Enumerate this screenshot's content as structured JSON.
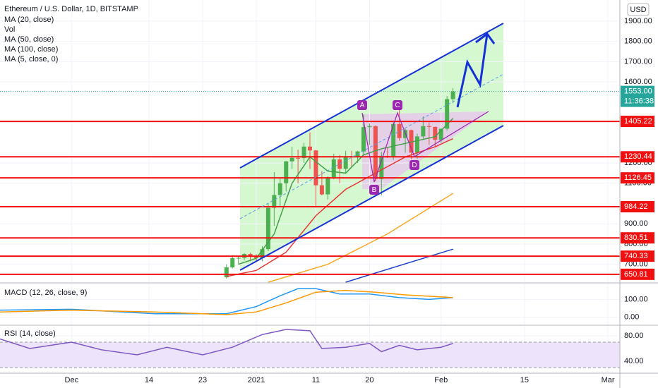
{
  "chart_data": [
    {
      "type": "candlestick",
      "title": "Ethereum / U.S. Dollar, 1D, BITSTAMP",
      "vol_label": "Vol",
      "currency": "USD",
      "up_color": "#4caf50",
      "down_color": "#ef5350",
      "grid": true,
      "xlim": [
        "2020-11-19",
        "2021-03-03"
      ],
      "xticks": [
        {
          "value": "2020-12-01",
          "label": "Dec"
        },
        {
          "value": "2020-12-14",
          "label": "14"
        },
        {
          "value": "2020-12-23",
          "label": "23"
        },
        {
          "value": "2021-01-01",
          "label": "2021"
        },
        {
          "value": "2021-01-11",
          "label": "11"
        },
        {
          "value": "2021-01-20",
          "label": "20"
        },
        {
          "value": "2021-02-01",
          "label": "Feb"
        },
        {
          "value": "2021-02-15",
          "label": "15"
        },
        {
          "value": "2021-03-01",
          "label": "Mar"
        }
      ],
      "ylim": [
        612,
        2004
      ],
      "yticks": [
        {
          "value": 1900,
          "label": "1900.00"
        },
        {
          "value": 1800,
          "label": "1800.00"
        },
        {
          "value": 1700,
          "label": "1700.00"
        },
        {
          "value": 1600,
          "label": "1600.00"
        },
        {
          "value": 1200,
          "label": "1200.00"
        },
        {
          "value": 1100,
          "label": "1100.00"
        },
        {
          "value": 900,
          "label": "900.00"
        },
        {
          "value": 800,
          "label": "800.00"
        },
        {
          "value": 700,
          "label": "700.00"
        }
      ],
      "levels": [
        1405.22,
        1230.44,
        1126.45,
        984.22,
        830.51,
        740.33,
        650.81
      ],
      "level_color": "#f01010",
      "last_price": {
        "value": 1553,
        "label": "1553.00"
      },
      "countdown": "11:36:38",
      "annotations": [
        "A",
        "B",
        "C",
        "D"
      ],
      "x": [
        "2020-12-27",
        "2020-12-28",
        "2020-12-29",
        "2020-12-30",
        "2020-12-31",
        "2021-01-01",
        "2021-01-02",
        "2021-01-03",
        "2021-01-04",
        "2021-01-05",
        "2021-01-06",
        "2021-01-07",
        "2021-01-08",
        "2021-01-09",
        "2021-01-10",
        "2021-01-11",
        "2021-01-12",
        "2021-01-13",
        "2021-01-14",
        "2021-01-15",
        "2021-01-16",
        "2021-01-17",
        "2021-01-18",
        "2021-01-19",
        "2021-01-20",
        "2021-01-21",
        "2021-01-22",
        "2021-01-23",
        "2021-01-24",
        "2021-01-25",
        "2021-01-26",
        "2021-01-27",
        "2021-01-28",
        "2021-01-29",
        "2021-01-30",
        "2021-01-31",
        "2021-02-01",
        "2021-02-02",
        "2021-02-03"
      ],
      "open": [
        636,
        685,
        731,
        732,
        751,
        737,
        730,
        775,
        979,
        1042,
        1100,
        1208,
        1225,
        1224,
        1281,
        1262,
        1090,
        1045,
        1130,
        1218,
        1171,
        1233,
        1230,
        1257,
        1377,
        1382,
        1121,
        1235,
        1233,
        1392,
        1323,
        1362,
        1251,
        1331,
        1382,
        1378,
        1314,
        1369,
        1515
      ],
      "high": [
        700,
        745,
        740,
        755,
        757,
        750,
        790,
        1000,
        1155,
        1130,
        1210,
        1280,
        1265,
        1300,
        1350,
        1265,
        1160,
        1135,
        1245,
        1240,
        1260,
        1260,
        1260,
        1440,
        1395,
        1385,
        1255,
        1275,
        1400,
        1470,
        1370,
        1365,
        1345,
        1430,
        1400,
        1380,
        1370,
        1530,
        1570
      ],
      "low": [
        630,
        680,
        700,
        720,
        715,
        715,
        715,
        765,
        890,
        985,
        1060,
        1170,
        1100,
        1200,
        1170,
        980,
        1040,
        1020,
        1120,
        1100,
        1150,
        1180,
        1200,
        1240,
        1290,
        1110,
        1040,
        1225,
        1215,
        1310,
        1250,
        1220,
        1220,
        1320,
        1290,
        1280,
        1300,
        1360,
        1495
      ],
      "close": [
        685,
        731,
        732,
        751,
        737,
        730,
        775,
        979,
        1042,
        1100,
        1208,
        1225,
        1224,
        1281,
        1262,
        1090,
        1045,
        1130,
        1218,
        1171,
        1233,
        1230,
        1257,
        1377,
        1382,
        1121,
        1235,
        1233,
        1392,
        1323,
        1362,
        1251,
        1331,
        1382,
        1378,
        1314,
        1369,
        1515,
        1553
      ],
      "series": [
        {
          "name": "MA (20, close)",
          "color": "#e53935",
          "x": [
            "2020-12-27",
            "2021-01-01",
            "2021-01-06",
            "2021-01-11",
            "2021-01-16",
            "2021-01-21",
            "2021-01-26",
            "2021-01-31",
            "2021-02-03"
          ],
          "values": [
            640,
            670,
            760,
            940,
            1070,
            1150,
            1230,
            1280,
            1320
          ]
        },
        {
          "name": "MA (50, close)",
          "color": "#f9a825",
          "x": [
            "2021-01-03",
            "2021-01-13",
            "2021-01-23",
            "2021-02-03"
          ],
          "values": [
            612,
            700,
            850,
            1050
          ]
        },
        {
          "name": "MA (100, close)",
          "color": "#1e40c8",
          "x": [
            "2021-01-16",
            "2021-02-03"
          ],
          "values": [
            612,
            775
          ]
        },
        {
          "name": "MA (5, close, 0)",
          "color": "#43a047",
          "x": [
            "2020-12-29",
            "2021-01-01",
            "2021-01-04",
            "2021-01-07",
            "2021-01-10",
            "2021-01-13",
            "2021-01-16",
            "2021-01-19",
            "2021-01-22",
            "2021-01-25",
            "2021-01-28",
            "2021-01-31",
            "2021-02-03"
          ],
          "values": [
            700,
            730,
            850,
            1100,
            1230,
            1160,
            1150,
            1240,
            1270,
            1290,
            1310,
            1330,
            1420
          ]
        }
      ]
    },
    {
      "type": "line",
      "title": "MACD (12, 26, close, 9)",
      "ylim": [
        -40,
        188
      ],
      "yticks": [
        {
          "value": 100,
          "label": "100.00"
        },
        {
          "value": 0,
          "label": "0.00"
        }
      ],
      "series": [
        {
          "color": "#2196f3",
          "x": [
            "2020-11-19",
            "2020-12-01",
            "2020-12-15",
            "2020-12-27",
            "2021-01-01",
            "2021-01-05",
            "2021-01-08",
            "2021-01-11",
            "2021-01-15",
            "2021-01-20",
            "2021-01-25",
            "2021-01-30",
            "2021-02-03"
          ],
          "values": [
            40,
            45,
            20,
            20,
            60,
            120,
            160,
            160,
            130,
            130,
            110,
            100,
            110
          ]
        },
        {
          "color": "#ff9800",
          "x": [
            "2020-11-19",
            "2020-12-01",
            "2020-12-15",
            "2020-12-27",
            "2021-01-01",
            "2021-01-06",
            "2021-01-11",
            "2021-01-16",
            "2021-01-21",
            "2021-01-26",
            "2021-02-03"
          ],
          "values": [
            30,
            40,
            30,
            15,
            30,
            80,
            140,
            150,
            140,
            125,
            110
          ]
        }
      ]
    },
    {
      "type": "line",
      "title": "RSI (14, close)",
      "ylim": [
        22.2,
        95.6
      ],
      "yticks": [
        {
          "value": 80,
          "label": "80.00"
        },
        {
          "value": 40,
          "label": "40.00"
        }
      ],
      "band": [
        30,
        70
      ],
      "series": [
        {
          "color": "#7e57c2",
          "x": [
            "2020-11-19",
            "2020-11-24",
            "2020-12-01",
            "2020-12-06",
            "2020-12-12",
            "2020-12-17",
            "2020-12-23",
            "2020-12-28",
            "2021-01-02",
            "2021-01-06",
            "2021-01-10",
            "2021-01-12",
            "2021-01-16",
            "2021-01-20",
            "2021-01-22",
            "2021-01-25",
            "2021-01-28",
            "2021-02-01",
            "2021-02-03"
          ],
          "values": [
            75,
            60,
            70,
            58,
            50,
            62,
            50,
            62,
            82,
            90,
            88,
            60,
            62,
            68,
            55,
            65,
            58,
            62,
            68
          ]
        }
      ]
    }
  ]
}
